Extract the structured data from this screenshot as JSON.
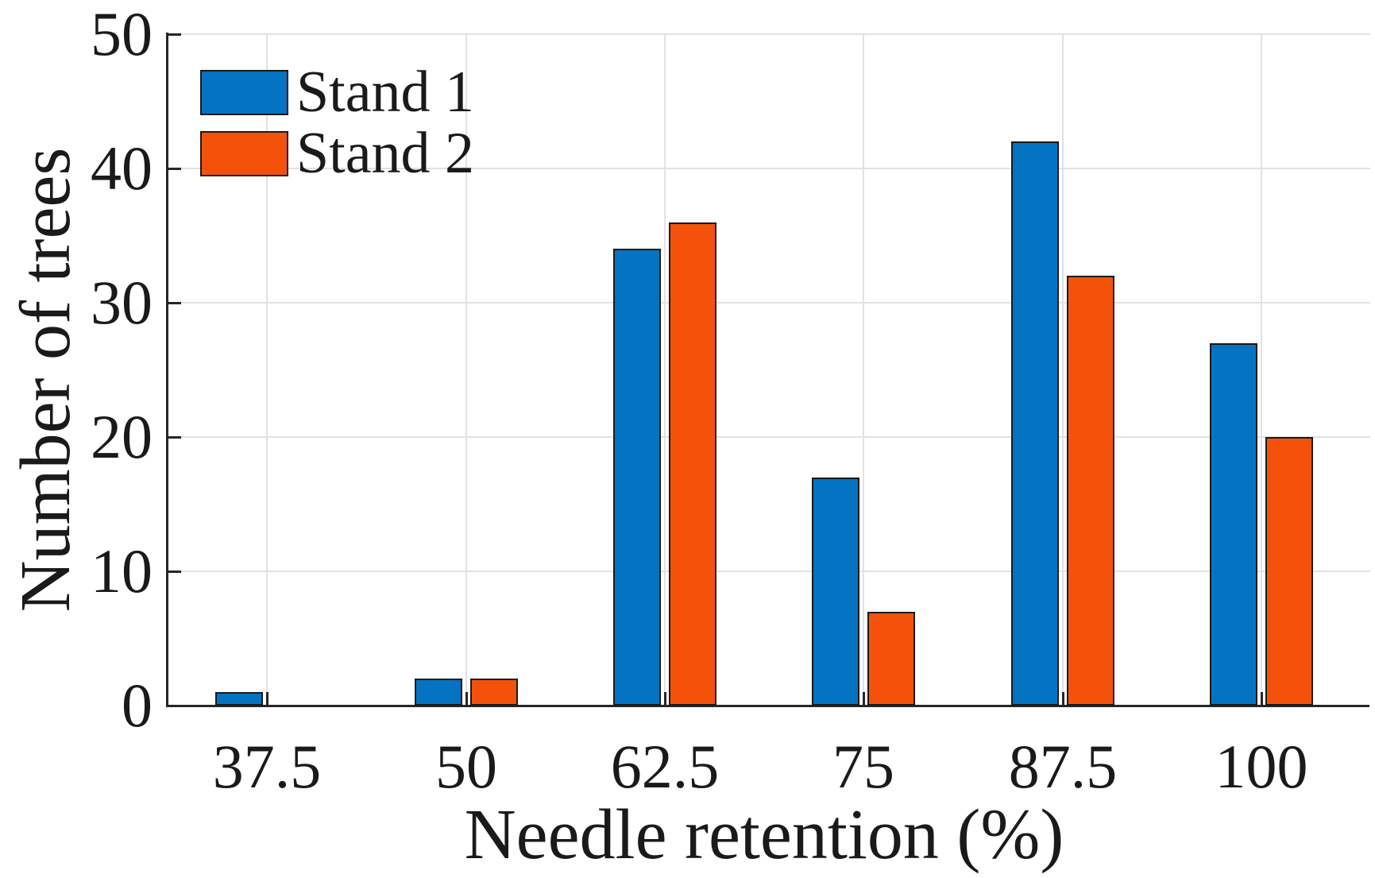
{
  "chart_data": {
    "type": "bar",
    "title": "",
    "xlabel": "Needle retention (%)",
    "ylabel": "Number of trees",
    "categories": [
      "37.5",
      "50",
      "62.5",
      "75",
      "87.5",
      "100"
    ],
    "series": [
      {
        "name": "Stand 1",
        "color": "#0473C1",
        "values": [
          1,
          2,
          34,
          17,
          42,
          27
        ]
      },
      {
        "name": "Stand 2",
        "color": "#F4520B",
        "values": [
          0,
          2,
          36,
          7,
          32,
          20
        ]
      }
    ],
    "ylim": [
      0,
      50
    ],
    "yticks": [
      0,
      10,
      20,
      30,
      40,
      50
    ],
    "grid": "on",
    "legend_position": "top-left",
    "bar_edge_color": "#1A1A1A",
    "grid_color": "#E2E2E2",
    "axis_color": "#262626",
    "text_color": "#1A1A1A"
  }
}
